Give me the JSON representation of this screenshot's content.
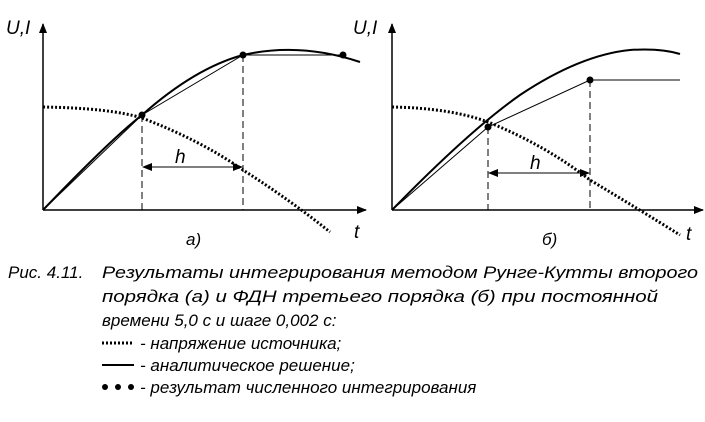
{
  "panels": [
    {
      "y_label": "U,I",
      "x_label": "t",
      "step_label": "h",
      "label": "а)"
    },
    {
      "y_label": "U,I",
      "x_label": "t",
      "step_label": "h",
      "label": "б)"
    }
  ],
  "caption": {
    "number": "Рис. 4.11.",
    "lines": [
      "Результаты интегрирования методом Рунге-Кутты второго",
      "порядка (а) и ФДН третьего порядка (б) при постоянной",
      "времени 5,0 с и шаге 0,002 с:"
    ]
  },
  "legend": [
    "- напряжение источника;",
    "- аналитическое решение;",
    "- результат численного интегрирования"
  ]
}
